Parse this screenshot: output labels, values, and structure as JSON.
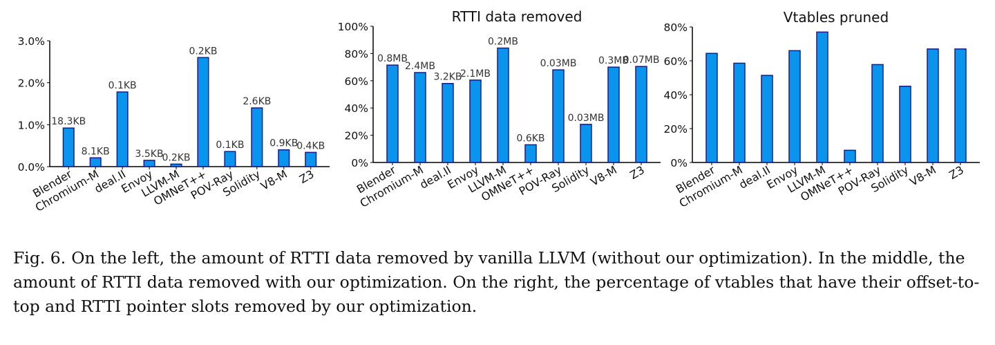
{
  "chart_data": [
    {
      "type": "bar",
      "title": "",
      "categories": [
        "Blender",
        "Chromium-M",
        "deal.II",
        "Envoy",
        "LLVM-M",
        "OMNeT++",
        "POV-Ray",
        "Solidity",
        "V8-M",
        "Z3"
      ],
      "values": [
        0.92,
        0.21,
        1.78,
        0.15,
        0.06,
        2.6,
        0.36,
        1.4,
        0.4,
        0.34
      ],
      "data_labels": [
        "18.3KB",
        "8.1KB",
        "0.1KB",
        "3.5KB",
        "0.2KB",
        "0.2KB",
        "0.1KB",
        "2.6KB",
        "0.9KB",
        "0.4KB"
      ],
      "ylim": [
        0,
        3
      ],
      "yticks": [
        "0.0%",
        "1.0%",
        "2.0%",
        "3.0%"
      ],
      "ytick_values": [
        0,
        1,
        2,
        3
      ],
      "xlabel": "",
      "ylabel": "",
      "grid": false
    },
    {
      "type": "bar",
      "title": "RTTI data removed",
      "categories": [
        "Blender",
        "Chromium-M",
        "deal.II",
        "Envoy",
        "LLVM-M",
        "OMNeT++",
        "POV-Ray",
        "Solidity",
        "V8-M",
        "Z3"
      ],
      "values": [
        71.5,
        66,
        58,
        60.5,
        84,
        13,
        68,
        28,
        70,
        70.5
      ],
      "data_labels": [
        "0.8MB",
        "2.4MB",
        "3.2KB",
        "2.1MB",
        "0.2MB",
        "0.6KB",
        "0.03MB",
        "0.03MB",
        "0.3MB",
        "0.07MB"
      ],
      "ylim": [
        0,
        100
      ],
      "yticks": [
        "0%",
        "20%",
        "40%",
        "60%",
        "80%",
        "100%"
      ],
      "ytick_values": [
        0,
        20,
        40,
        60,
        80,
        100
      ],
      "xlabel": "",
      "ylabel": "",
      "grid": false
    },
    {
      "type": "bar",
      "title": "Vtables pruned",
      "categories": [
        "Blender",
        "Chromium-M",
        "deal.II",
        "Envoy",
        "LLVM-M",
        "OMNeT++",
        "POV-Ray",
        "Solidity",
        "V8-M",
        "Z3"
      ],
      "values": [
        64.4,
        58.6,
        51.4,
        66,
        77,
        7.2,
        57.8,
        45,
        67,
        67
      ],
      "data_labels": [],
      "ylim": [
        0,
        80
      ],
      "yticks": [
        "0%",
        "20%",
        "40%",
        "60%",
        "80%"
      ],
      "ytick_values": [
        0,
        20,
        40,
        60,
        80
      ],
      "xlabel": "",
      "ylabel": "",
      "grid": false
    }
  ],
  "colors": {
    "bar_fill": "#0994ee",
    "bar_edge": "#1a1a8c",
    "label": "#333333",
    "axis": "#000000"
  },
  "caption": {
    "label": "Fig. 6.",
    "text": "On the left, the amount of RTTI data removed by vanilla LLVM (without our optimization). In the middle, the amount of RTTI data removed with our optimization. On the right, the percentage of vtables that have their offset-to-top and RTTI pointer slots removed by our optimization."
  }
}
